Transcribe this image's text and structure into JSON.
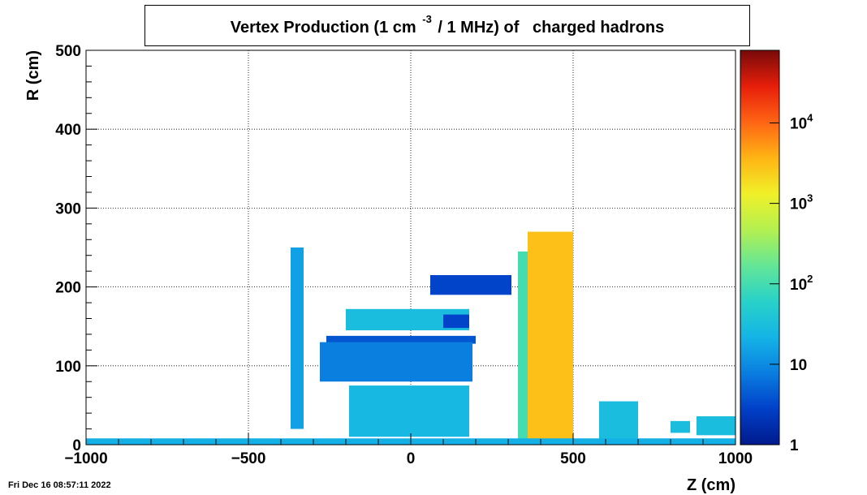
{
  "title": {
    "main": "Vertex Production (1 cm",
    "sup": "-3",
    "rest": "/ 1 MHz) of   charged hadrons"
  },
  "timestamp": "Fri Dec 16 08:57:11 2022",
  "chart_data": {
    "type": "heatmap",
    "xlabel": "Z (cm)",
    "ylabel": "R (cm)",
    "xlim": [
      -1000,
      1000
    ],
    "ylim": [
      0,
      500
    ],
    "x_ticks": [
      -1000,
      -500,
      0,
      500,
      1000
    ],
    "x_tick_labels": [
      "−1000",
      "−500",
      "0",
      "500",
      "1000"
    ],
    "y_ticks": [
      0,
      100,
      200,
      300,
      400,
      500
    ],
    "y_tick_labels": [
      "0",
      "100",
      "200",
      "300",
      "400",
      "500"
    ],
    "grid": true,
    "colorbar": {
      "scale": "log",
      "range": [
        1,
        80000
      ],
      "ticks": [
        {
          "value": 1,
          "base": "1",
          "exp": ""
        },
        {
          "value": 10,
          "base": "10",
          "exp": ""
        },
        {
          "value": 100,
          "base": "10",
          "exp": "2"
        },
        {
          "value": 1000,
          "base": "10",
          "exp": "3"
        },
        {
          "value": 10000,
          "base": "10",
          "exp": "4"
        }
      ],
      "colormap": [
        "#001a8c",
        "#0040c8",
        "#0a7ee0",
        "#14b4e6",
        "#28d2c8",
        "#64e696",
        "#b4f050",
        "#f0f028",
        "#ffb414",
        "#ff6414",
        "#e61e0a",
        "#780a0a"
      ]
    },
    "regions": [
      {
        "name": "vertical-strip-left",
        "z": [
          -370,
          -330
        ],
        "r": [
          20,
          250
        ],
        "value": 15
      },
      {
        "name": "thin-rect-upper",
        "z": [
          -200,
          180
        ],
        "r": [
          145,
          172
        ],
        "value": 30
      },
      {
        "name": "inner-fill-upper",
        "z": [
          100,
          180
        ],
        "r": [
          148,
          165
        ],
        "value": 3
      },
      {
        "name": "horizontal-bar",
        "z": [
          -260,
          200
        ],
        "r": [
          128,
          138
        ],
        "value": 4
      },
      {
        "name": "wedge-top",
        "z": [
          60,
          310
        ],
        "r": [
          190,
          215
        ],
        "value": 3
      },
      {
        "name": "dome",
        "z": [
          -280,
          190
        ],
        "r": [
          80,
          130
        ],
        "value": 8
      },
      {
        "name": "inner-frame",
        "z": [
          -190,
          180
        ],
        "r": [
          10,
          75
        ],
        "value": 25
      },
      {
        "name": "right-slab-outer",
        "z": [
          330,
          360
        ],
        "r": [
          5,
          245
        ],
        "value": 100
      },
      {
        "name": "hot-column",
        "z": [
          360,
          500
        ],
        "r": [
          5,
          270
        ],
        "value": 3000
      },
      {
        "name": "box-1",
        "z": [
          580,
          700
        ],
        "r": [
          5,
          55
        ],
        "value": 30
      },
      {
        "name": "box-2",
        "z": [
          800,
          860
        ],
        "r": [
          15,
          30
        ],
        "value": 30
      },
      {
        "name": "box-3",
        "z": [
          880,
          1000
        ],
        "r": [
          12,
          36
        ],
        "value": 30
      },
      {
        "name": "beamline",
        "z": [
          -1000,
          1000
        ],
        "r": [
          0,
          8
        ],
        "value": 20
      }
    ]
  }
}
